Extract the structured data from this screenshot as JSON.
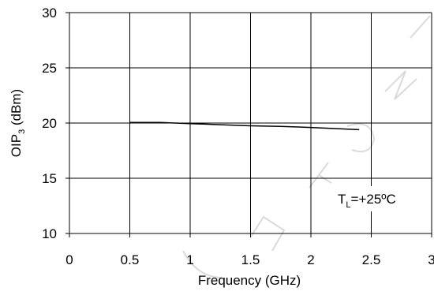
{
  "chart_data": {
    "type": "line",
    "xlabel": "Frequency (GHz)",
    "ylabel": {
      "main": "OIP",
      "sub": "3",
      "rest": " (dBm)"
    },
    "xlim": [
      0,
      3
    ],
    "ylim": [
      10,
      30
    ],
    "xticks": [
      "0",
      "0.5",
      "1",
      "1.5",
      "2",
      "2.5",
      "3"
    ],
    "yticks": [
      "10",
      "15",
      "20",
      "25",
      "30"
    ],
    "grid": true,
    "series": [
      {
        "x": [
          0.5,
          0.75,
          1.0,
          1.25,
          1.5,
          1.75,
          2.0,
          2.2,
          2.4
        ],
        "y": [
          20.05,
          20.05,
          19.95,
          19.85,
          19.75,
          19.7,
          19.6,
          19.5,
          19.4
        ],
        "color": "#000000"
      }
    ],
    "annotation": {
      "main": "T",
      "sub": "L",
      "rest": "=+25ºC"
    },
    "watermark": "NOT FOR NEW DESIGN"
  }
}
